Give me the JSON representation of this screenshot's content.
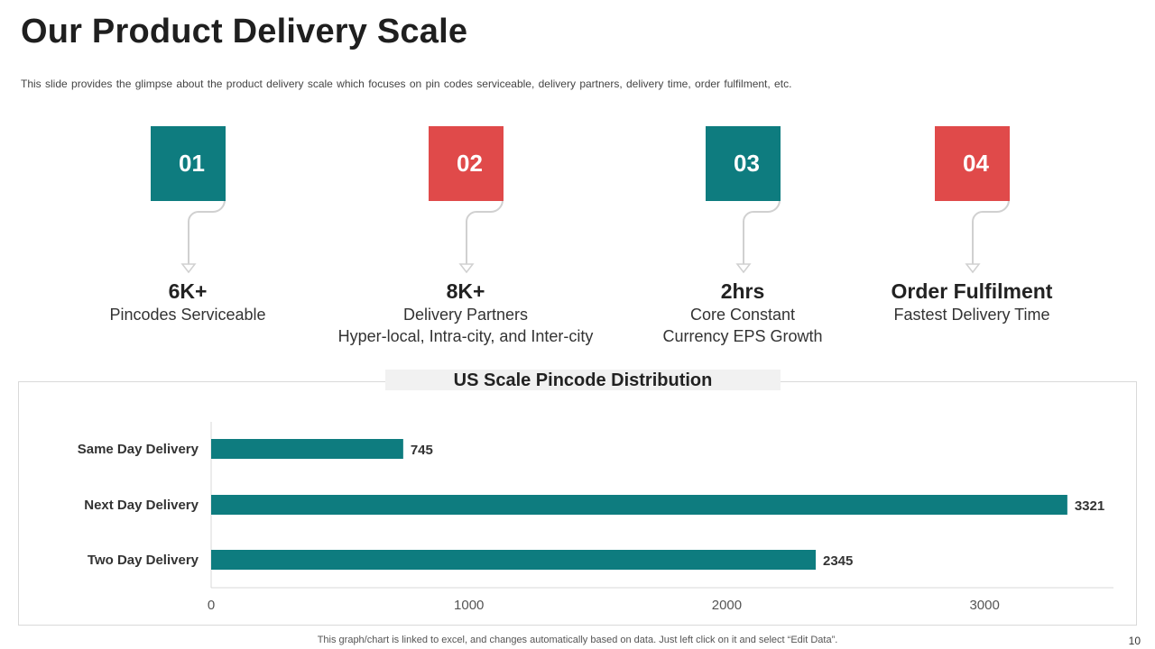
{
  "slide": {
    "title": "Our Product Delivery Scale",
    "subtitle": "This slide provides  the glimpse about the product delivery  scale which focuses on pin codes serviceable,  delivery  partners,  delivery  time, order fulfilment,  etc.",
    "footer_note": "This graph/chart is linked to excel,  and changes automatically based on data. Just left click on it and select “Edit Data”.",
    "page_number": "10"
  },
  "steps": [
    {
      "number": "01",
      "color": "#0e7c7f",
      "metric": "6K+",
      "lines": [
        "Pincodes Serviceable"
      ]
    },
    {
      "number": "02",
      "color": "#e04a4a",
      "metric": "8K+",
      "lines": [
        "Delivery Partners",
        "Hyper-local, Intra-city, and Inter-city"
      ]
    },
    {
      "number": "03",
      "color": "#0e7c7f",
      "metric": "2hrs",
      "lines": [
        "Core Constant",
        "Currency EPS Growth"
      ]
    },
    {
      "number": "04",
      "color": "#e04a4a",
      "metric": "Order Fulfilment",
      "lines": [
        "Fastest Delivery Time"
      ]
    }
  ],
  "chart_data": {
    "type": "bar",
    "orientation": "horizontal",
    "title": "US Scale Pincode Distribution",
    "categories": [
      "Same Day Delivery",
      "Next Day Delivery",
      "Two Day Delivery"
    ],
    "values": [
      745,
      3321,
      2345
    ],
    "xlim": [
      0,
      3500
    ],
    "xticks": [
      0,
      1000,
      2000,
      3000
    ],
    "xlabel": "",
    "ylabel": "",
    "bar_color": "#0e7c7f",
    "data_labels": true,
    "grid": false
  }
}
